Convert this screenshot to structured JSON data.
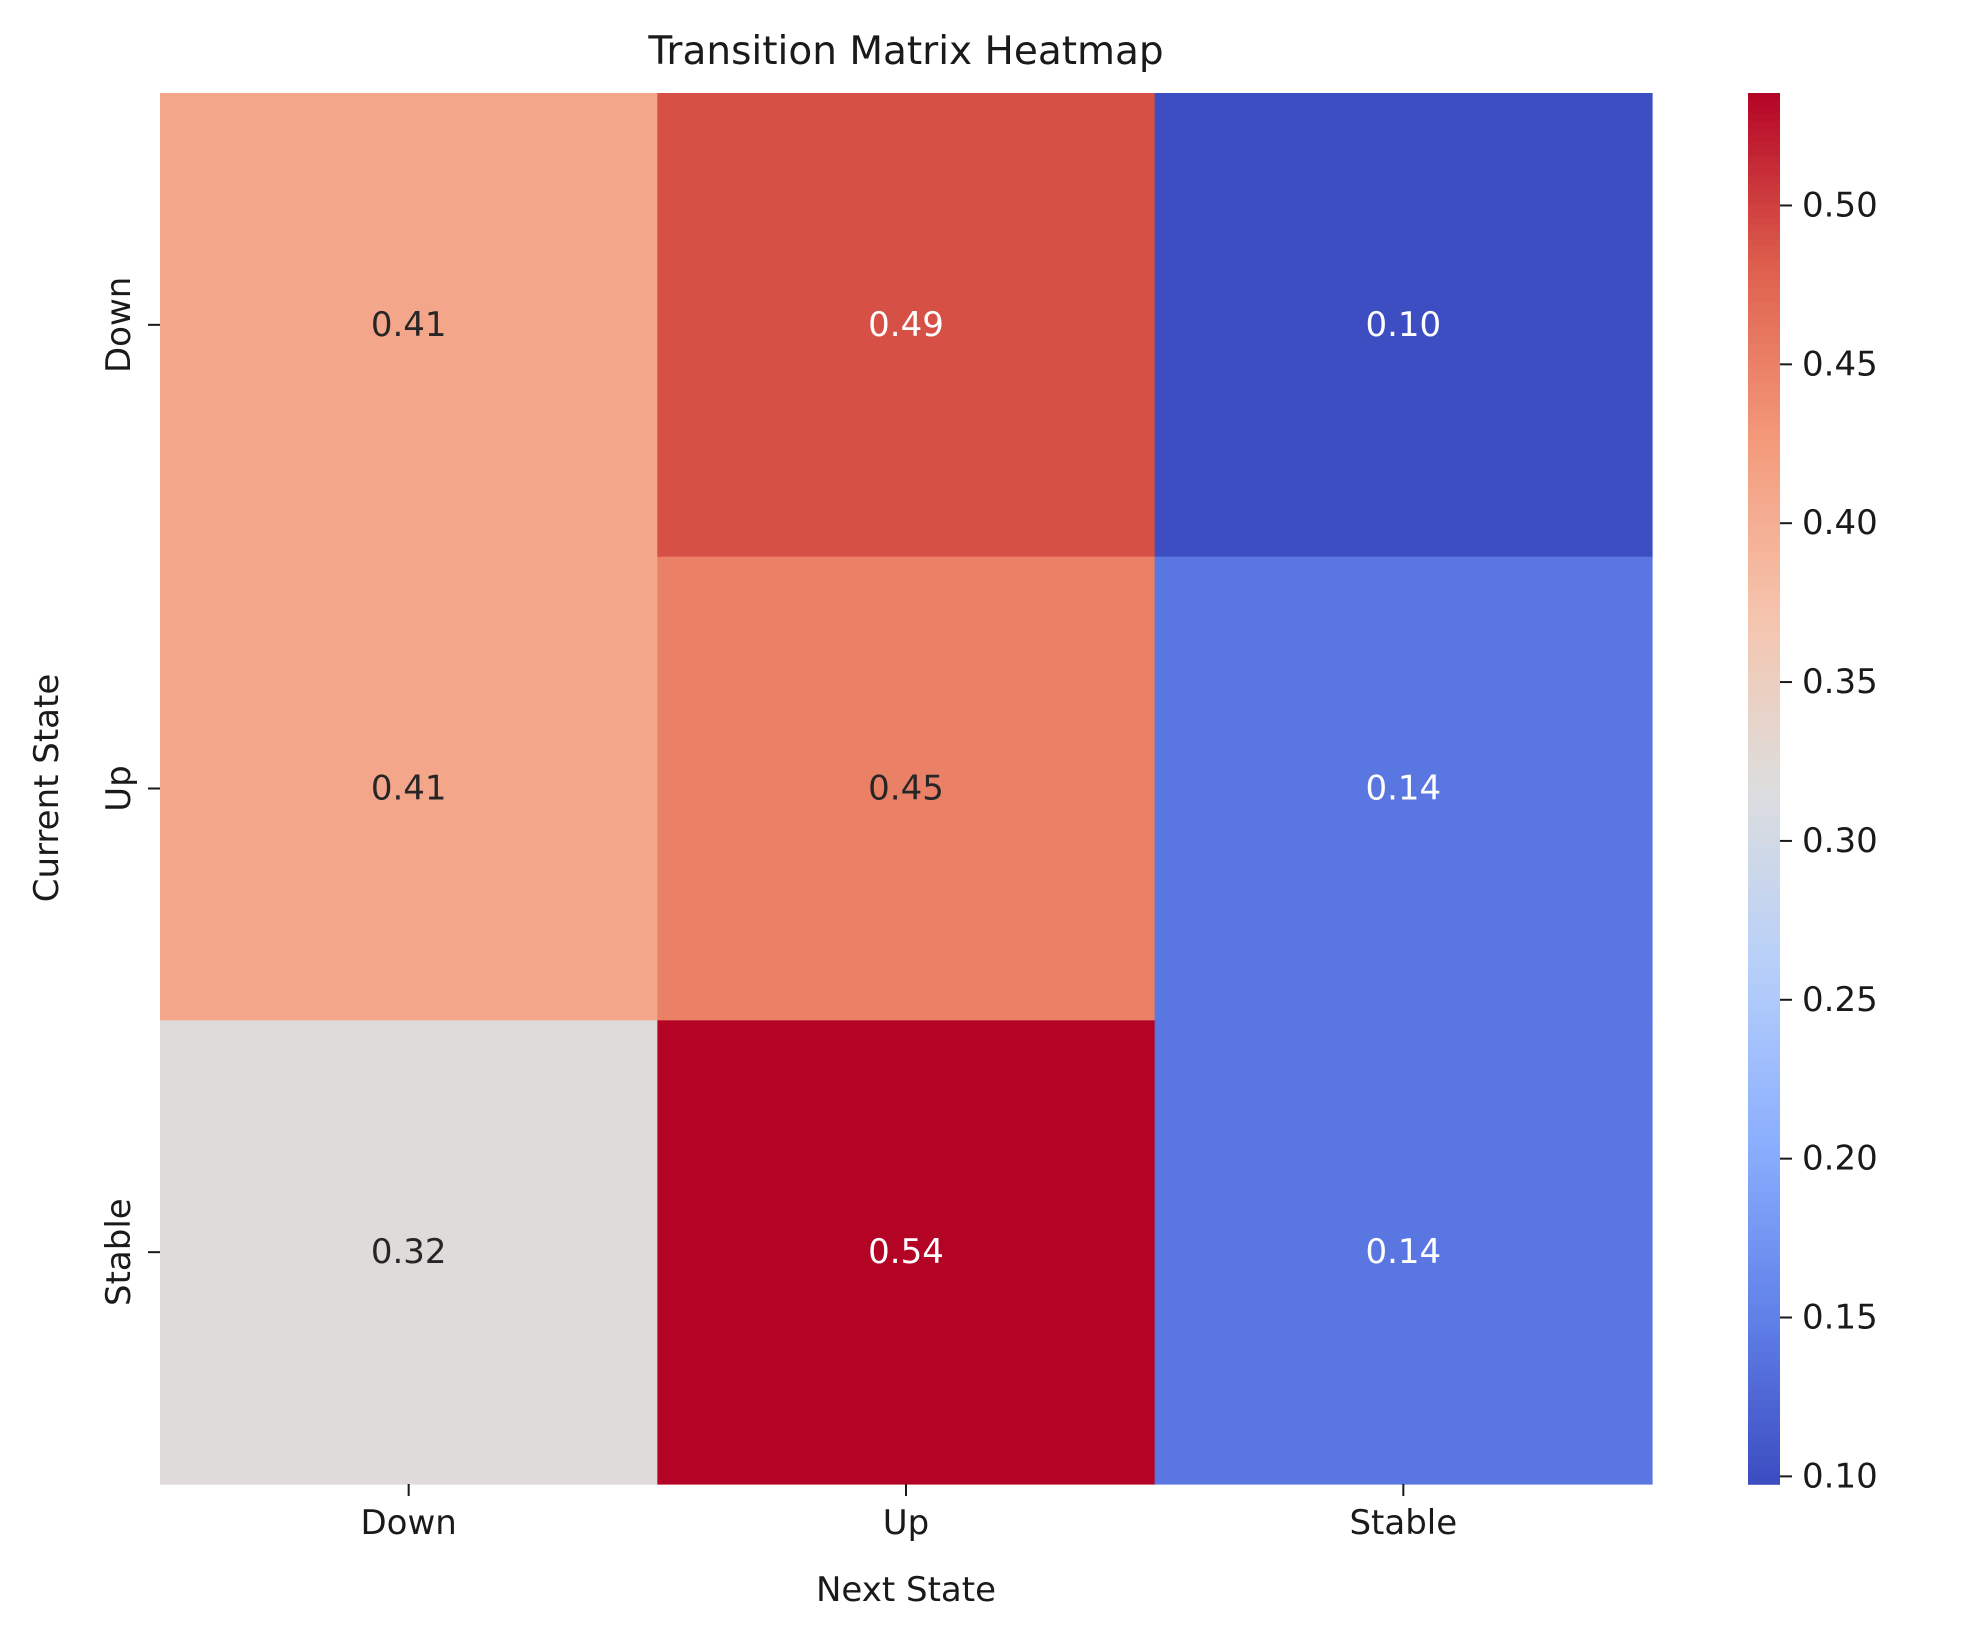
{
  "chart_data": {
    "type": "heatmap",
    "title": "Transition Matrix Heatmap",
    "xlabel": "Next State",
    "ylabel": "Current State",
    "x_categories": [
      "Down",
      "Up",
      "Stable"
    ],
    "y_categories": [
      "Down",
      "Up",
      "Stable"
    ],
    "values": [
      [
        0.41,
        0.49,
        0.1
      ],
      [
        0.41,
        0.45,
        0.14
      ],
      [
        0.32,
        0.54,
        0.14
      ]
    ],
    "cell_labels": [
      [
        "0.41",
        "0.49",
        "0.10"
      ],
      [
        "0.41",
        "0.45",
        "0.14"
      ],
      [
        "0.32",
        "0.54",
        "0.14"
      ]
    ],
    "colormap": "coolwarm",
    "color_range": [
      0.0976,
      0.5354
    ],
    "colorbar_ticks": [
      0.1,
      0.15,
      0.2,
      0.25,
      0.3,
      0.35,
      0.4,
      0.45,
      0.5
    ],
    "colorbar_tick_labels": [
      "0.10",
      "0.15",
      "0.20",
      "0.25",
      "0.30",
      "0.35",
      "0.40",
      "0.45",
      "0.50"
    ],
    "colorbar_position": "right",
    "grid": false,
    "annotation_color_dark": "#262626",
    "annotation_color_light": "#ffffff"
  }
}
